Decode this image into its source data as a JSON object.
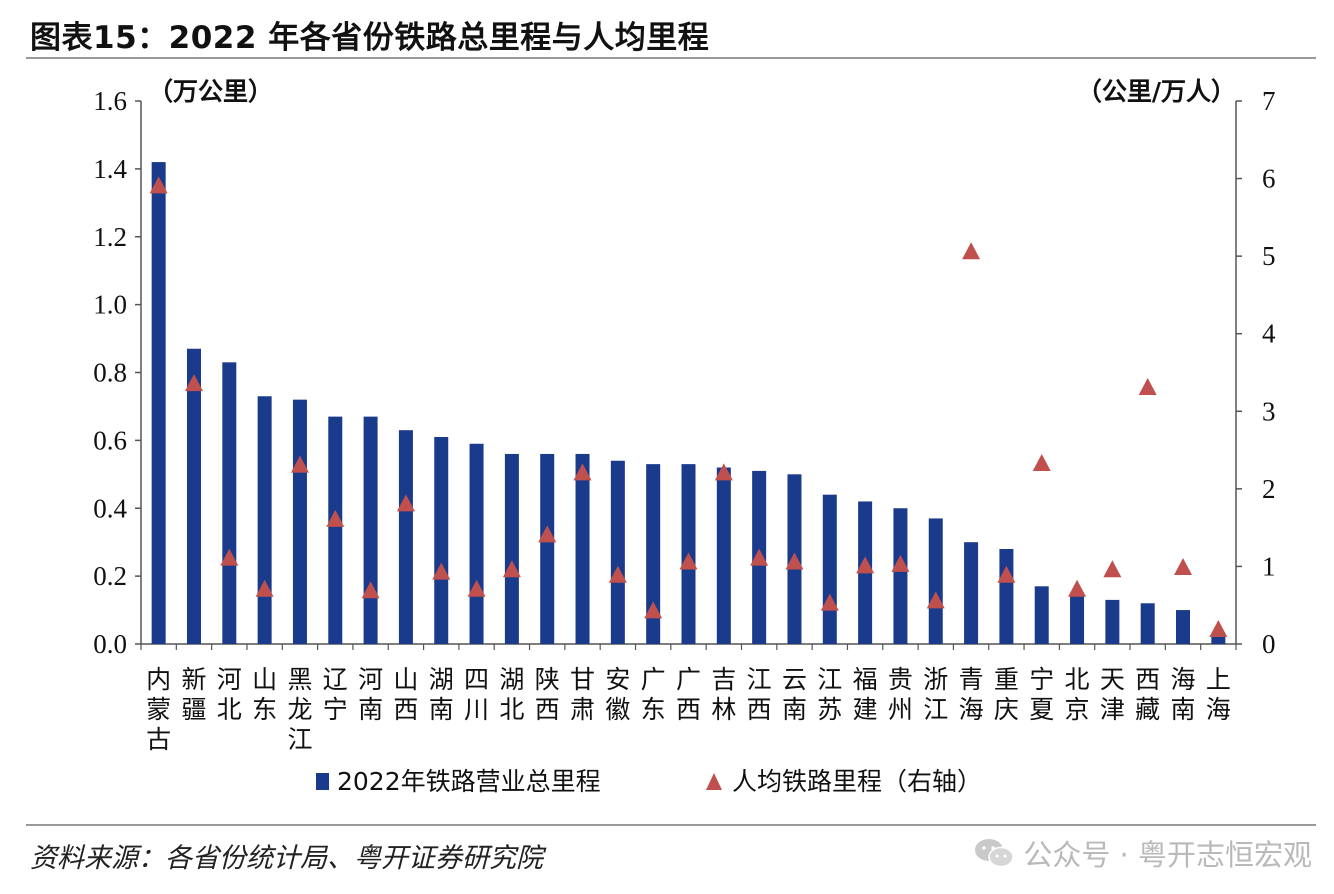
{
  "title": "图表15：2022 年各省份铁路总里程与人均里程",
  "source": "资料来源：各省份统计局、粤开证券研究院",
  "watermark": "公众号 · 粤开志恒宏观",
  "colors": {
    "bar": "#1a3a8c",
    "marker": "#c0504d",
    "axis": "#555555"
  },
  "chart_data": {
    "type": "bar",
    "title": "2022 年各省份铁路总里程与人均里程",
    "y_left_unit": "（万公里）",
    "y_right_unit": "（公里/万人）",
    "ylim_left": [
      0,
      1.6
    ],
    "ylim_right": [
      0,
      7
    ],
    "left_ticks": [
      "0.0",
      "0.2",
      "0.4",
      "0.6",
      "0.8",
      "1.0",
      "1.2",
      "1.4",
      "1.6"
    ],
    "right_ticks": [
      "0",
      "1",
      "2",
      "3",
      "4",
      "5",
      "6",
      "7"
    ],
    "categories": [
      "内蒙古",
      "新疆",
      "河北",
      "山东",
      "黑龙江",
      "辽宁",
      "河南",
      "山西",
      "湖南",
      "四川",
      "湖北",
      "陕西",
      "甘肃",
      "安徽",
      "广东",
      "广西",
      "吉林",
      "江西",
      "云南",
      "江苏",
      "福建",
      "贵州",
      "浙江",
      "青海",
      "重庆",
      "宁夏",
      "北京",
      "天津",
      "西藏",
      "海南",
      "上海"
    ],
    "series": [
      {
        "name": "2022年铁路营业总里程",
        "type": "bar",
        "axis": "left",
        "values": [
          1.42,
          0.87,
          0.83,
          0.73,
          0.72,
          0.67,
          0.67,
          0.63,
          0.61,
          0.59,
          0.56,
          0.56,
          0.56,
          0.54,
          0.53,
          0.53,
          0.52,
          0.51,
          0.5,
          0.44,
          0.42,
          0.4,
          0.37,
          0.3,
          0.28,
          0.17,
          0.14,
          0.13,
          0.12,
          0.1,
          0.03
        ]
      },
      {
        "name": "人均铁路里程（右轴）",
        "type": "scatter",
        "axis": "right",
        "values": [
          5.9,
          3.35,
          1.1,
          0.7,
          2.3,
          1.6,
          0.68,
          1.8,
          0.92,
          0.7,
          0.95,
          1.4,
          2.2,
          0.88,
          0.42,
          1.05,
          2.2,
          1.1,
          1.05,
          0.52,
          1.0,
          1.02,
          0.55,
          5.05,
          0.88,
          2.32,
          0.7,
          0.95,
          3.3,
          0.98,
          0.18
        ]
      }
    ]
  }
}
